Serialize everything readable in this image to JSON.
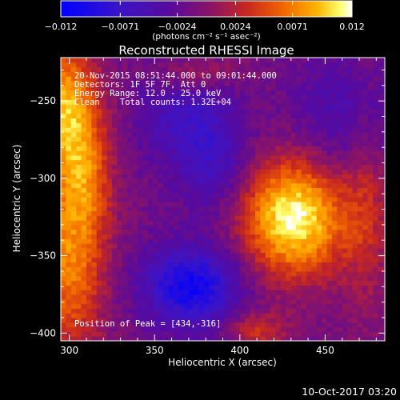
{
  "chart_data": {
    "type": "heatmap",
    "title": "Reconstructed RHESSI Image",
    "xlabel": "Heliocentric X (arcsec)",
    "ylabel": "Heliocentric Y (arcsec)",
    "xlim": [
      295,
      485
    ],
    "ylim": [
      -405,
      -222
    ],
    "x_ticks": [
      300,
      350,
      400,
      450
    ],
    "y_ticks": [
      -250,
      -300,
      -350,
      -400
    ],
    "x_tick_labels": [
      "300",
      "350",
      "400",
      "450"
    ],
    "y_tick_labels": [
      "−250",
      "−300",
      "−350",
      "−400"
    ],
    "colorbar": {
      "range": [
        -0.012,
        0.012
      ],
      "ticks": [
        -0.012,
        -0.0071,
        -0.0024,
        0.0024,
        0.0071,
        0.012
      ],
      "tick_labels": [
        "−0.012",
        "−0.0071",
        "−0.0024",
        "0.0024",
        "0.0071",
        "0.012"
      ],
      "units_label": "(photons cm⁻² s⁻¹ asec⁻²)",
      "colors": [
        "#0000ff",
        "#3a14c8",
        "#5a0a9a",
        "#8c1464",
        "#c8281e",
        "#f06400",
        "#ffb400",
        "#ffff6e",
        "#ffffff"
      ]
    },
    "annotations": [
      "20-Nov-2015 08:51:44.000 to 09:01:44.000",
      "Detectors: 1F 5F 7F, Att 0",
      "Energy Range: 12.0 - 25.0 keV",
      "Clean    Total counts: 1.32E+04"
    ],
    "peak_label": "Position of Peak = [434,-316]",
    "peak": [
      434,
      -316
    ],
    "grid": false,
    "sources": [
      {
        "x": 432,
        "y": -325,
        "sx": 22,
        "sy": 27,
        "amp": 0.013
      },
      {
        "x": 298,
        "y": -255,
        "sx": 14,
        "sy": 30,
        "amp": 0.01
      },
      {
        "x": 300,
        "y": -350,
        "sx": 15,
        "sy": 45,
        "amp": 0.0085
      },
      {
        "x": 312,
        "y": -300,
        "sx": 10,
        "sy": 25,
        "amp": 0.004
      },
      {
        "x": 410,
        "y": -398,
        "sx": 12,
        "sy": 8,
        "amp": 0.005
      },
      {
        "x": 475,
        "y": -300,
        "sx": 10,
        "sy": 60,
        "amp": 0.004
      },
      {
        "x": 375,
        "y": -232,
        "sx": 18,
        "sy": 8,
        "amp": 0.0035
      },
      {
        "x": 372,
        "y": -370,
        "sx": 20,
        "sy": 18,
        "amp": -0.0095
      },
      {
        "x": 385,
        "y": -290,
        "sx": 15,
        "sy": 25,
        "amp": -0.0045
      },
      {
        "x": 365,
        "y": -260,
        "sx": 20,
        "sy": 22,
        "amp": -0.004
      },
      {
        "x": 470,
        "y": -260,
        "sx": 25,
        "sy": 30,
        "amp": -0.0045
      }
    ],
    "background": -0.0012
  },
  "footer": {
    "date": "10-Oct-2017 03:20"
  }
}
